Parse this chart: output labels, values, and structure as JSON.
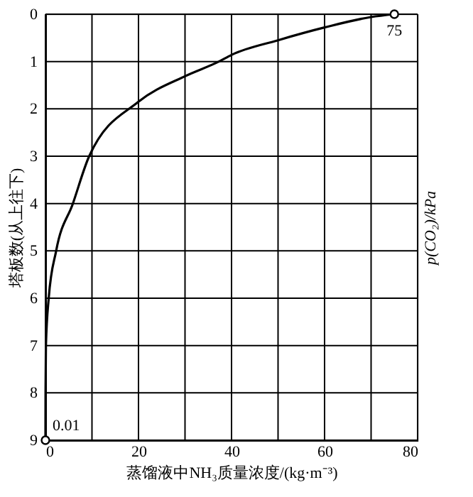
{
  "chart_data": {
    "type": "line",
    "xlabel": "蒸馏液中NH₃质量浓度/(kg·m⁻³)",
    "ylabel": "塔板数(从上往下)",
    "y2label": "p(CO₂)/kPa",
    "series": [
      {
        "color": "#000000",
        "x": [
          0,
          0.02,
          0.1,
          0.7,
          2.3,
          5.9,
          9.4,
          20,
          30,
          37.3,
          40,
          50,
          60,
          70,
          75
        ],
        "values": [
          9,
          8,
          7,
          6,
          5,
          4,
          3,
          1.85,
          1.31,
          1,
          0.86,
          0.55,
          0.28,
          0.06,
          0
        ]
      }
    ],
    "annotations": [
      {
        "text": "75",
        "x": 75,
        "y": 0
      },
      {
        "text": "0.01",
        "x": 0,
        "y": 9
      }
    ],
    "xlim": [
      0,
      80
    ],
    "xticks": [
      0,
      {
        "value": 10,
        "label": null
      },
      20,
      {
        "value": 30,
        "label": null
      },
      40,
      {
        "value": 50,
        "label": null
      },
      60,
      {
        "value": 70,
        "label": null
      },
      80
    ],
    "ylim": [
      9,
      0
    ],
    "yticks": [
      0,
      1,
      2,
      3,
      4,
      5,
      6,
      7,
      8,
      9
    ],
    "grid": true,
    "line_style": "solid"
  }
}
